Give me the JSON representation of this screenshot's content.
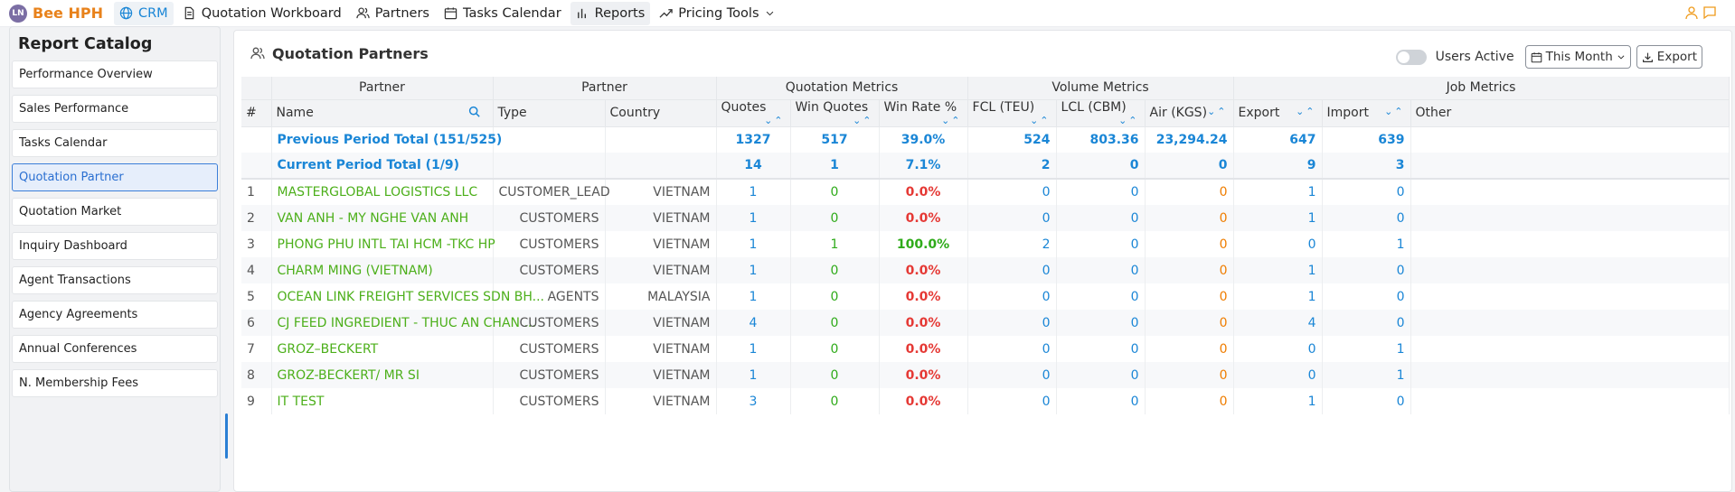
{
  "app": {
    "logo_text": "LN",
    "brand": "Bee HPH"
  },
  "nav": [
    {
      "label": "CRM",
      "icon": "globe-icon"
    },
    {
      "label": "Quotation Workboard",
      "icon": "document-icon"
    },
    {
      "label": "Partners",
      "icon": "users-icon"
    },
    {
      "label": "Tasks Calendar",
      "icon": "calendar-icon"
    },
    {
      "label": "Reports",
      "icon": "bar-chart-icon"
    },
    {
      "label": "Pricing Tools",
      "icon": "trend-icon"
    }
  ],
  "sidebar": {
    "title": "Report Catalog",
    "items": [
      "Performance Overview",
      "Sales Performance",
      "Tasks Calendar",
      "Quotation Partner",
      "Quotation Market",
      "Inquiry Dashboard",
      "Agent Transactions",
      "Agency Agreements",
      "Annual Conferences",
      "N. Membership Fees"
    ],
    "active_index": 3
  },
  "main": {
    "title": "Quotation Partners",
    "users_active_label": "Users Active",
    "period_label": "This Month",
    "export_label": "Export"
  },
  "table": {
    "groups": [
      "Partner",
      "Partner",
      "Quotation Metrics",
      "Volume Metrics",
      "Job Metrics"
    ],
    "columns": [
      "#",
      "Name",
      "Type",
      "Country",
      "Quotes",
      "Win Quotes",
      "Win Rate %",
      "FCL (TEU)",
      "LCL (CBM)",
      "Air (KGS)",
      "Export",
      "Import",
      "Other"
    ],
    "summary": [
      {
        "label": "Previous Period Total (151/525)",
        "quotes": "1327",
        "win_quotes": "517",
        "win_rate": "39.0%",
        "fcl": "524",
        "lcl": "803.36",
        "air": "23,294.24",
        "export": "647",
        "import": "639"
      },
      {
        "label": "Current Period Total (1/9)",
        "quotes": "14",
        "win_quotes": "1",
        "win_rate": "7.1%",
        "fcl": "2",
        "lcl": "0",
        "air": "0",
        "export": "9",
        "import": "3"
      }
    ],
    "rows": [
      {
        "n": "1",
        "name": "MASTERGLOBAL LOGISTICS LLC",
        "type": "CUSTOMER_LEAD",
        "country": "VIETNAM",
        "quotes": "1",
        "win_quotes": "0",
        "win_rate": "0.0%",
        "fcl": "0",
        "lcl": "0",
        "air": "0",
        "export": "1",
        "import": "0"
      },
      {
        "n": "2",
        "name": "VAN ANH - MY NGHE VAN ANH",
        "type": "CUSTOMERS",
        "country": "VIETNAM",
        "quotes": "1",
        "win_quotes": "0",
        "win_rate": "0.0%",
        "fcl": "0",
        "lcl": "0",
        "air": "0",
        "export": "1",
        "import": "0"
      },
      {
        "n": "3",
        "name": "PHONG PHU INTL TAI HCM -TKC HP",
        "type": "CUSTOMERS",
        "country": "VIETNAM",
        "quotes": "1",
        "win_quotes": "1",
        "win_rate": "100.0%",
        "fcl": "2",
        "lcl": "0",
        "air": "0",
        "export": "0",
        "import": "1"
      },
      {
        "n": "4",
        "name": "CHARM MING (VIETNAM)",
        "type": "CUSTOMERS",
        "country": "VIETNAM",
        "quotes": "1",
        "win_quotes": "0",
        "win_rate": "0.0%",
        "fcl": "0",
        "lcl": "0",
        "air": "0",
        "export": "1",
        "import": "0"
      },
      {
        "n": "5",
        "name": "OCEAN LINK FREIGHT SERVICES SDN BH...",
        "type": "AGENTS",
        "country": "MALAYSIA",
        "quotes": "1",
        "win_quotes": "0",
        "win_rate": "0.0%",
        "fcl": "0",
        "lcl": "0",
        "air": "0",
        "export": "1",
        "import": "0"
      },
      {
        "n": "6",
        "name": "CJ FEED INGREDIENT - THUC AN CHAN ...",
        "type": "CUSTOMERS",
        "country": "VIETNAM",
        "quotes": "4",
        "win_quotes": "0",
        "win_rate": "0.0%",
        "fcl": "0",
        "lcl": "0",
        "air": "0",
        "export": "4",
        "import": "0"
      },
      {
        "n": "7",
        "name": "GROZ–BECKERT",
        "type": "CUSTOMERS",
        "country": "VIETNAM",
        "quotes": "1",
        "win_quotes": "0",
        "win_rate": "0.0%",
        "fcl": "0",
        "lcl": "0",
        "air": "0",
        "export": "0",
        "import": "1"
      },
      {
        "n": "8",
        "name": "GROZ-BECKERT/ MR SI",
        "type": "CUSTOMERS",
        "country": "VIETNAM",
        "quotes": "1",
        "win_quotes": "0",
        "win_rate": "0.0%",
        "fcl": "0",
        "lcl": "0",
        "air": "0",
        "export": "0",
        "import": "1"
      },
      {
        "n": "9",
        "name": "IT TEST",
        "type": "CUSTOMERS",
        "country": "VIETNAM",
        "quotes": "3",
        "win_quotes": "0",
        "win_rate": "0.0%",
        "fcl": "0",
        "lcl": "0",
        "air": "0",
        "export": "1",
        "import": "0"
      }
    ]
  },
  "colors": {
    "accent": "#1a86d6",
    "brand": "#e8821b",
    "name_green": "#4caf1a",
    "loss_red": "#e53935",
    "air_orange": "#ef7d00"
  }
}
